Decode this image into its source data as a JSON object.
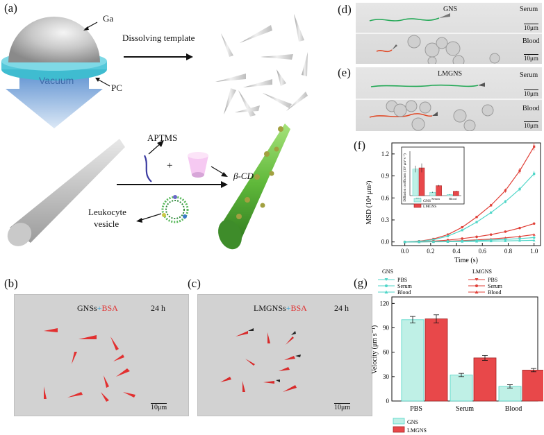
{
  "labels": {
    "a": "(a)",
    "b": "(b)",
    "c": "(c)",
    "d": "(d)",
    "e": "(e)",
    "f": "(f)",
    "g": "(g)"
  },
  "panel_a": {
    "ga": "Ga",
    "pc": "PC",
    "vacuum": "Vacuum",
    "dissolving": "Dissolving template",
    "aptms": "APTMS",
    "plus": "+",
    "bcd": "β-CD",
    "leukocyte_line1": "Leukocyte",
    "leukocyte_line2": "vesicle"
  },
  "panel_b": {
    "title_a": "GNSs",
    "title_plus": "+",
    "title_b": "BSA",
    "time": "24 h",
    "scale": "10μm"
  },
  "panel_c": {
    "title_a": "LMGNSs",
    "title_plus": "+",
    "title_b": "BSA",
    "time": "24 h",
    "scale": "10μm"
  },
  "panel_d": {
    "title": "GNS",
    "serum": "Serum",
    "blood": "Blood",
    "scale_top": "10μm",
    "scale_bottom": "10μm"
  },
  "panel_e": {
    "title": "LMGNS",
    "serum": "Serum",
    "blood": "Blood",
    "scale_top": "10μm",
    "scale_bottom": "10μm"
  },
  "colors": {
    "gns": "#4fd6c8",
    "lmgns": "#e04038",
    "gns_bar": "#bff0e6",
    "lmgns_bar": "#e8484a",
    "bsa_red": "#e03030",
    "green_track": "#22a855",
    "red_track": "#e04a28"
  },
  "chart_data": [
    {
      "type": "line",
      "panel": "f",
      "xlabel": "Time (s)",
      "ylabel": "MSD (10⁴ μm²)",
      "xlim": [
        -0.1,
        1.05
      ],
      "ylim": [
        -0.05,
        1.35
      ],
      "xticks": [
        "0.0",
        "0.2",
        "0.4",
        "0.6",
        "0.8",
        "1.0"
      ],
      "yticks": [
        "0.0",
        "0.3",
        "0.6",
        "0.9",
        "1.2"
      ],
      "x": [
        0.0,
        0.111,
        0.222,
        0.333,
        0.444,
        0.556,
        0.667,
        0.778,
        0.889,
        1.0
      ],
      "series": [
        {
          "group": "LMGNS",
          "medium": "PBS",
          "values": [
            0.0,
            0.01,
            0.04,
            0.1,
            0.2,
            0.34,
            0.5,
            0.7,
            0.97,
            1.3
          ]
        },
        {
          "group": "GNS",
          "medium": "PBS",
          "values": [
            0.0,
            0.008,
            0.03,
            0.08,
            0.16,
            0.27,
            0.4,
            0.55,
            0.72,
            0.93
          ]
        },
        {
          "group": "LMGNS",
          "medium": "Serum",
          "values": [
            0.0,
            0.003,
            0.01,
            0.025,
            0.045,
            0.07,
            0.1,
            0.14,
            0.19,
            0.25
          ]
        },
        {
          "group": "LMGNS",
          "medium": "Blood",
          "values": [
            0.0,
            0.001,
            0.004,
            0.01,
            0.018,
            0.028,
            0.04,
            0.055,
            0.075,
            0.1
          ]
        },
        {
          "group": "GNS",
          "medium": "Serum",
          "values": [
            0.0,
            0.001,
            0.003,
            0.007,
            0.012,
            0.018,
            0.026,
            0.035,
            0.045,
            0.06
          ]
        },
        {
          "group": "GNS",
          "medium": "Blood",
          "values": [
            0.0,
            0.0005,
            0.0015,
            0.003,
            0.005,
            0.008,
            0.011,
            0.014,
            0.018,
            0.022
          ]
        }
      ],
      "legend": [
        {
          "name": "GNS"
        },
        {
          "name": "LMGNS"
        }
      ],
      "inset": {
        "type": "bar",
        "ylabel": "Diffusion coefficient (10² μm² s⁻¹)",
        "categories": [
          "PBS",
          "Serum",
          "Blood"
        ],
        "ylim": [
          0,
          40
        ],
        "series": [
          {
            "name": "GNS",
            "values": [
              24,
              3,
              1
            ],
            "errors": [
              3,
              0.5,
              0.3
            ]
          },
          {
            "name": "LMGNS",
            "values": [
              25,
              9,
              4
            ],
            "errors": [
              4,
              0.7,
              0.4
            ]
          }
        ]
      }
    },
    {
      "type": "bar",
      "panel": "g",
      "ylabel": "Velocity (μm s⁻¹)",
      "ylim": [
        0,
        128
      ],
      "yticks": [
        "0",
        "30",
        "60",
        "90",
        "120"
      ],
      "categories": [
        "PBS",
        "Serum",
        "Blood"
      ],
      "series": [
        {
          "name": "GNS",
          "values": [
            100,
            32,
            18
          ],
          "errors": [
            4,
            2,
            2
          ]
        },
        {
          "name": "LMGNS",
          "values": [
            101,
            53,
            38
          ],
          "errors": [
            5,
            3,
            2
          ]
        }
      ],
      "top_legend": {
        "gns_title": "GNS",
        "lmgns_title": "LMGNS",
        "items": [
          "PBS",
          "Serum",
          "Blood"
        ]
      }
    }
  ]
}
